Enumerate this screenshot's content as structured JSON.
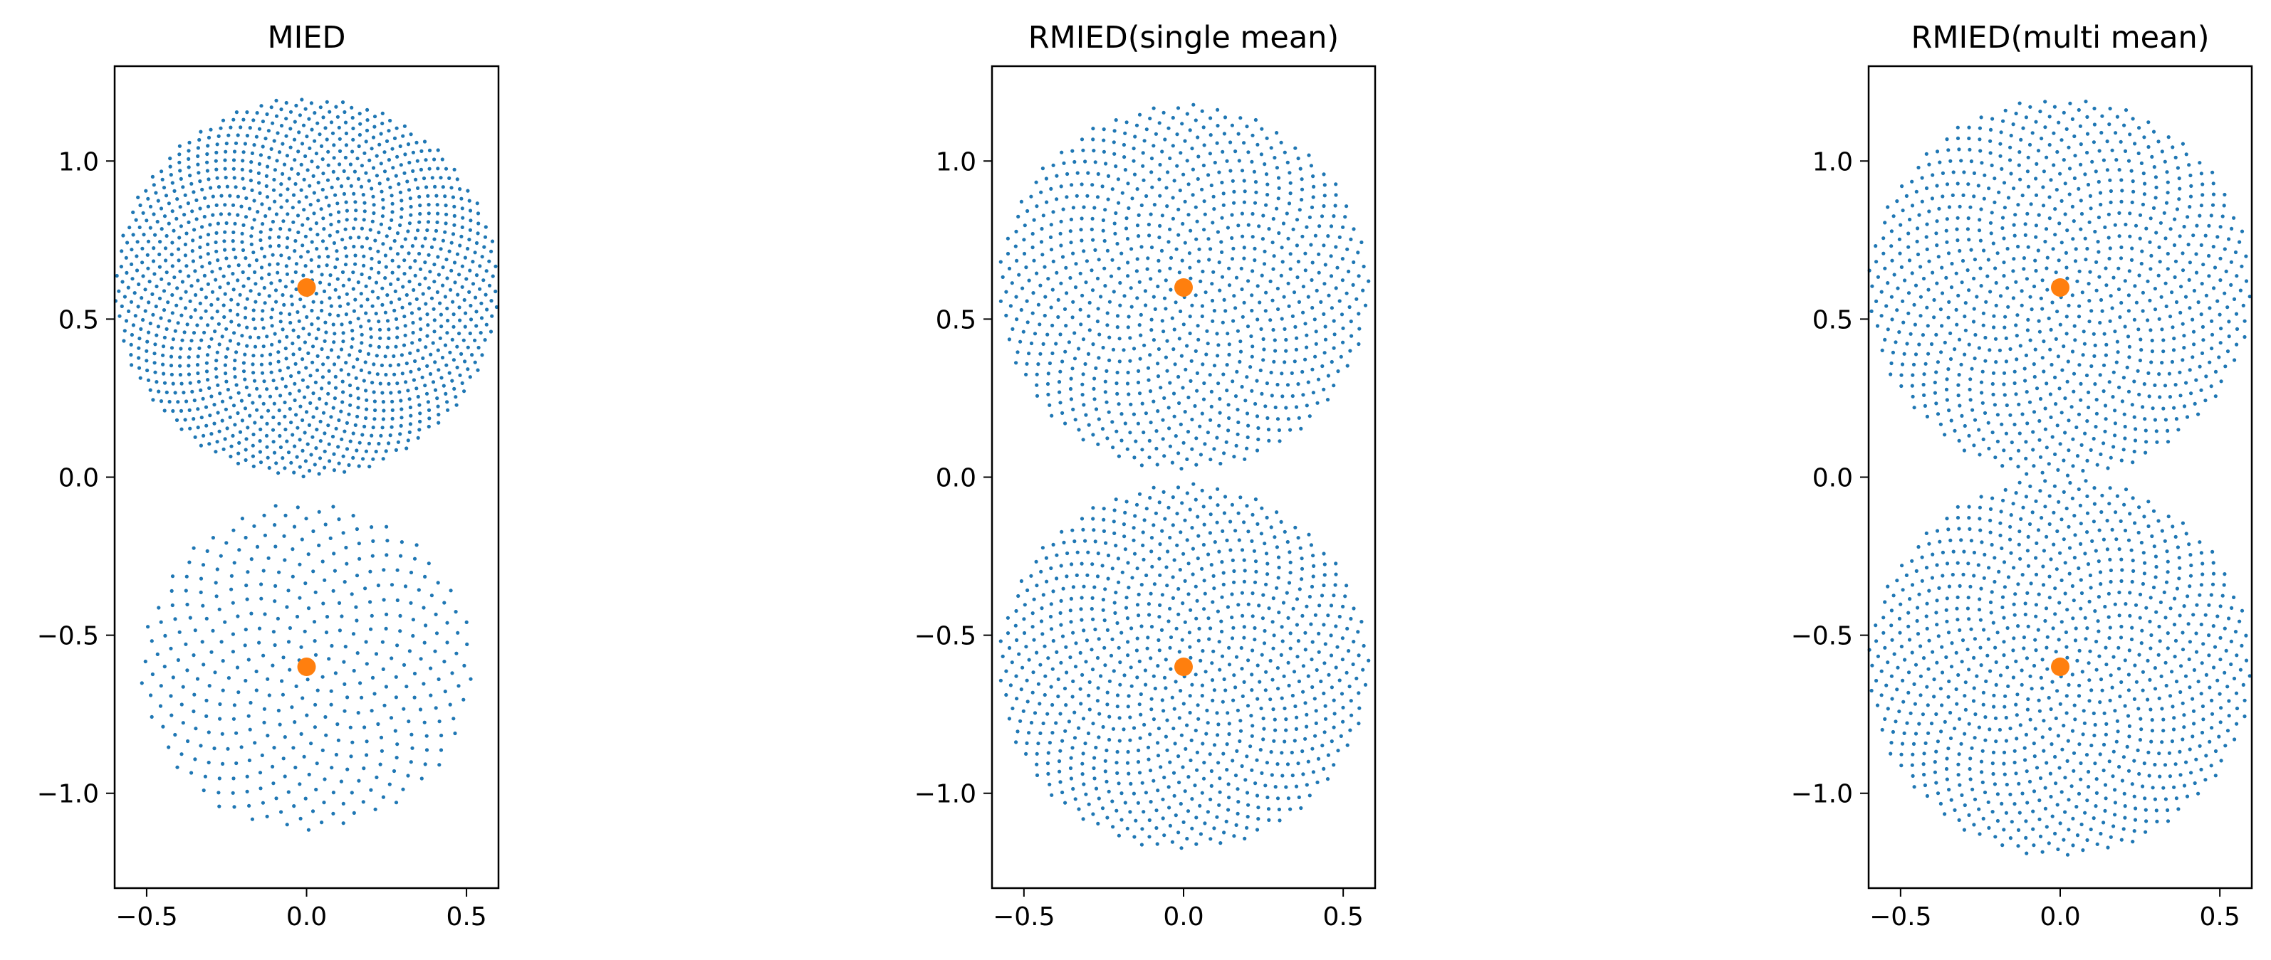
{
  "chart_data": [
    {
      "type": "scatter",
      "title": "MIED",
      "xlabel": "",
      "ylabel": "",
      "xlim": [
        -0.6,
        0.6
      ],
      "ylim": [
        -1.3,
        1.3
      ],
      "xticks": [
        -0.5,
        0.0,
        0.5
      ],
      "xtick_labels": [
        "−0.5",
        "0.0",
        "0.5"
      ],
      "yticks": [
        -1.0,
        -0.5,
        0.0,
        0.5,
        1.0
      ],
      "ytick_labels": [
        "−1.0",
        "−0.5",
        "0.0",
        "0.5",
        "1.0"
      ],
      "grid": false,
      "samples": {
        "color": "#1f77b4",
        "regions": [
          {
            "center": [
              0,
              0.6
            ],
            "radius": 0.6,
            "y_range": [
              0.0,
              1.2
            ],
            "count": 1500
          },
          {
            "center": [
              0,
              -0.6
            ],
            "radius": 0.52,
            "y_range": [
              -1.12,
              0.0
            ],
            "count": 420
          }
        ]
      },
      "means": {
        "color": "#ff7f0e",
        "points": [
          [
            0,
            0.6
          ],
          [
            0,
            -0.6
          ]
        ]
      }
    },
    {
      "type": "scatter",
      "title": "RMIED(single mean)",
      "xlabel": "",
      "ylabel": "",
      "xlim": [
        -0.6,
        0.6
      ],
      "ylim": [
        -1.3,
        1.3
      ],
      "xticks": [
        -0.5,
        0.0,
        0.5
      ],
      "xtick_labels": [
        "−0.5",
        "0.0",
        "0.5"
      ],
      "yticks": [
        -1.0,
        -0.5,
        0.0,
        0.5,
        1.0
      ],
      "ytick_labels": [
        "−1.0",
        "−0.5",
        "0.0",
        "0.5",
        "1.0"
      ],
      "grid": false,
      "samples": {
        "color": "#1f77b4",
        "regions": [
          {
            "center": [
              0,
              0.6
            ],
            "radius": 0.58,
            "y_range": [
              0.0,
              1.18
            ],
            "count": 900
          },
          {
            "center": [
              0,
              -0.6
            ],
            "radius": 0.58,
            "y_range": [
              -1.18,
              0.0
            ],
            "count": 900
          }
        ]
      },
      "means": {
        "color": "#ff7f0e",
        "points": [
          [
            0,
            0.6
          ],
          [
            0,
            -0.6
          ]
        ]
      }
    },
    {
      "type": "scatter",
      "title": "RMIED(multi mean)",
      "xlabel": "",
      "ylabel": "",
      "xlim": [
        -0.6,
        0.6
      ],
      "ylim": [
        -1.3,
        1.3
      ],
      "xticks": [
        -0.5,
        0.0,
        0.5
      ],
      "xtick_labels": [
        "−0.5",
        "0.0",
        "0.5"
      ],
      "yticks": [
        -1.0,
        -0.5,
        0.0,
        0.5,
        1.0
      ],
      "ytick_labels": [
        "−1.0",
        "−0.5",
        "0.0",
        "0.5",
        "1.0"
      ],
      "grid": false,
      "samples": {
        "color": "#1f77b4",
        "regions": [
          {
            "center": [
              0,
              0.6
            ],
            "radius": 0.6,
            "y_range": [
              0.0,
              1.2
            ],
            "count": 950
          },
          {
            "center": [
              0,
              -0.6
            ],
            "radius": 0.6,
            "y_range": [
              -1.2,
              0.0
            ],
            "count": 950
          }
        ]
      },
      "means": {
        "color": "#ff7f0e",
        "points": [
          [
            0,
            0.6
          ],
          [
            0,
            -0.6
          ]
        ]
      }
    }
  ]
}
